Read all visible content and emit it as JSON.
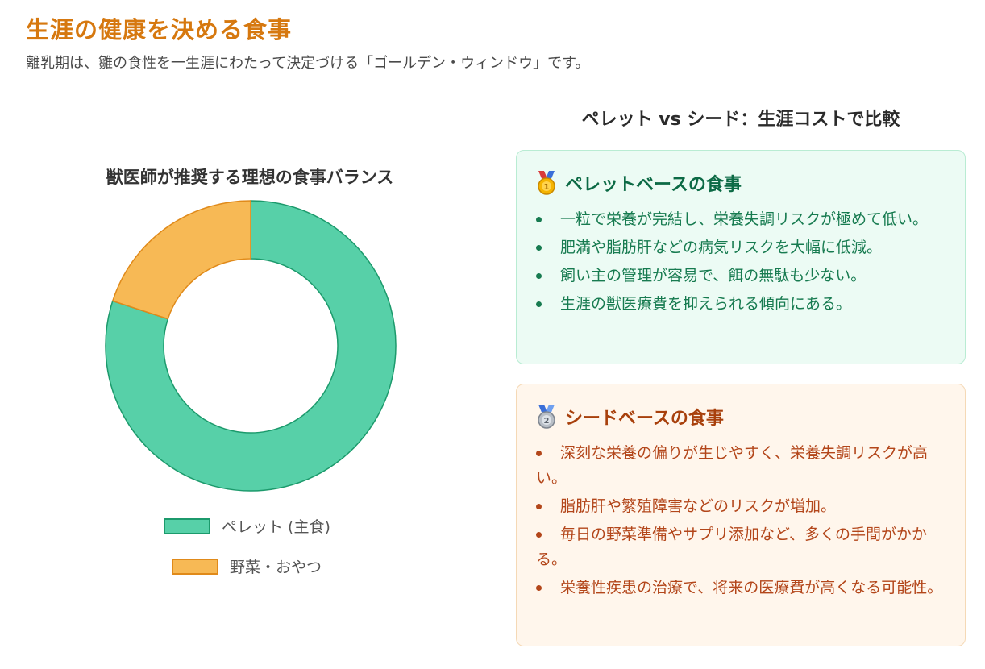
{
  "header": {
    "title": "生涯の健康を決める食事",
    "subtitle": "離乳期は、雛の食性を一生涯にわたって決定づける「ゴールデン・ウィンドウ」です。"
  },
  "chart_data": {
    "type": "pie",
    "title": "獣医師が推奨する理想の食事バランス",
    "categories": [
      "ペレット (主食)",
      "野菜・おやつ"
    ],
    "values": [
      80,
      20
    ],
    "colors": [
      "#57d0a8",
      "#f7b955"
    ],
    "border_colors": [
      "#1c9a6c",
      "#e08a1a"
    ],
    "legend": [
      "ペレット (主食)",
      "野菜・おやつ"
    ],
    "legend_position": "bottom",
    "hole": 0.6
  },
  "comparison": {
    "title": "ペレット vs シード：生涯コストで比較",
    "pellet": {
      "icon": "gold-medal-icon",
      "heading": "ペレットベースの食事",
      "items": [
        "一粒で栄養が完結し、栄養失調リスクが極めて低い。",
        "肥満や脂肪肝などの病気リスクを大幅に低減。",
        "飼い主の管理が容易で、餌の無駄も少ない。",
        "生涯の獣医療費を抑えられる傾向にある。"
      ]
    },
    "seed": {
      "icon": "silver-medal-icon",
      "heading": "シードベースの食事",
      "items": [
        "深刻な栄養の偏りが生じやすく、栄養失調リスクが高い。",
        "脂肪肝や繁殖障害などのリスクが増加。",
        "毎日の野菜準備やサプリ添加など、多くの手間がかかる。",
        "栄養性疾患の治療で、将来の医療費が高くなる可能性。"
      ]
    }
  }
}
